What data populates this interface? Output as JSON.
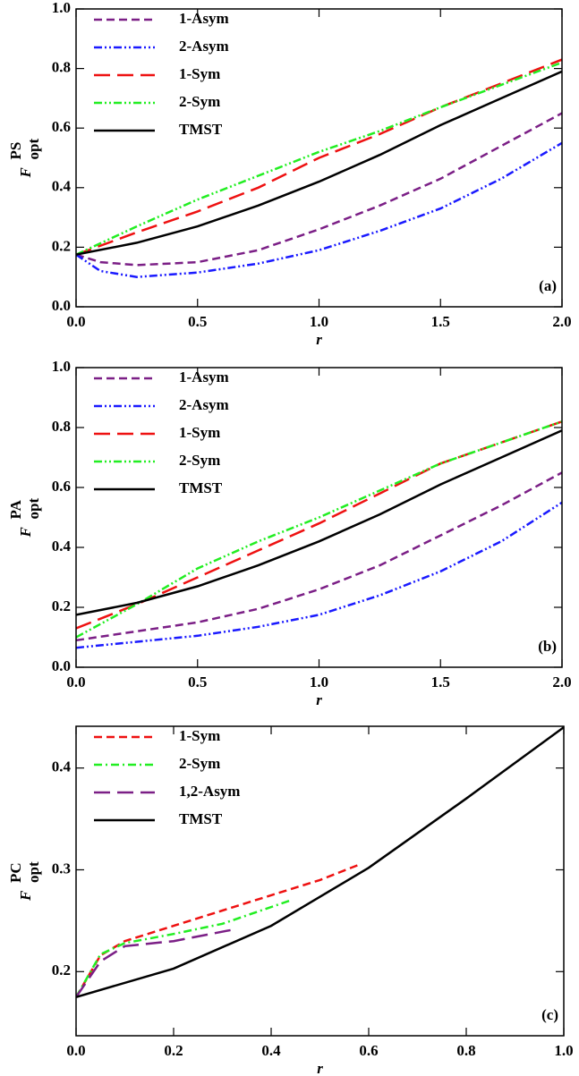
{
  "chart_data": [
    {
      "type": "line",
      "panel_label": "(a)",
      "xlabel": "r",
      "ylabel": "F",
      "ylabel_sub": "opt",
      "ylabel_sup": "PS",
      "xlim": [
        0,
        2
      ],
      "ylim": [
        0,
        1
      ],
      "xticks": [
        {
          "value": 0,
          "label": "0.0"
        },
        0.5,
        {
          "value": 1,
          "label": "1.0"
        },
        1.5,
        {
          "value": 2,
          "label": "2.0"
        }
      ],
      "yticks": [
        {
          "value": 0,
          "label": "0.0"
        },
        0.2,
        0.4,
        0.6,
        0.8,
        {
          "value": 1,
          "label": "1.0"
        }
      ],
      "legend": "upper left",
      "series": [
        {
          "name": "1-Asym",
          "color": "#7b1f86",
          "dash": "dash",
          "x": [
            0,
            0.1,
            0.25,
            0.5,
            0.75,
            1.0,
            1.25,
            1.5,
            1.75,
            2.0
          ],
          "values": [
            0.175,
            0.15,
            0.14,
            0.15,
            0.19,
            0.26,
            0.34,
            0.43,
            0.54,
            0.65
          ]
        },
        {
          "name": "2-Asym",
          "color": "#1a1aff",
          "dash": "dashdotdot",
          "x": [
            0,
            0.1,
            0.25,
            0.5,
            0.75,
            1.0,
            1.25,
            1.5,
            1.75,
            2.0
          ],
          "values": [
            0.175,
            0.12,
            0.1,
            0.115,
            0.145,
            0.19,
            0.255,
            0.33,
            0.43,
            0.55
          ]
        },
        {
          "name": "1-Sym",
          "color": "#ee1111",
          "dash": "longdash",
          "x": [
            0,
            0.25,
            0.5,
            0.75,
            1.0,
            1.25,
            1.5,
            1.75,
            2.0
          ],
          "values": [
            0.175,
            0.25,
            0.32,
            0.4,
            0.5,
            0.58,
            0.67,
            0.75,
            0.83
          ]
        },
        {
          "name": "2-Sym",
          "color": "#22ee22",
          "dash": "dashdotdot",
          "x": [
            0,
            0.25,
            0.5,
            0.75,
            1.0,
            1.25,
            1.5,
            1.75,
            2.0
          ],
          "values": [
            0.175,
            0.27,
            0.36,
            0.44,
            0.52,
            0.59,
            0.67,
            0.745,
            0.82
          ]
        },
        {
          "name": "TMST",
          "color": "#000000",
          "dash": "solid",
          "x": [
            0,
            0.25,
            0.5,
            0.75,
            1.0,
            1.25,
            1.5,
            1.75,
            2.0
          ],
          "values": [
            0.175,
            0.215,
            0.27,
            0.34,
            0.42,
            0.51,
            0.61,
            0.7,
            0.79
          ]
        }
      ]
    },
    {
      "type": "line",
      "panel_label": "(b)",
      "xlabel": "r",
      "ylabel": "F",
      "ylabel_sub": "opt",
      "ylabel_sup": "PA",
      "xlim": [
        0,
        2
      ],
      "ylim": [
        0,
        1
      ],
      "xticks": [
        {
          "value": 0,
          "label": "0.0"
        },
        0.5,
        {
          "value": 1,
          "label": "1.0"
        },
        1.5,
        {
          "value": 2,
          "label": "2.0"
        }
      ],
      "yticks": [
        {
          "value": 0,
          "label": "0.0"
        },
        0.2,
        0.4,
        0.6,
        0.8,
        {
          "value": 1,
          "label": "1.0"
        }
      ],
      "legend": "upper left",
      "series": [
        {
          "name": "1-Asym",
          "color": "#7b1f86",
          "dash": "dash",
          "x": [
            0,
            0.25,
            0.5,
            0.75,
            1.0,
            1.25,
            1.5,
            1.75,
            2.0
          ],
          "values": [
            0.09,
            0.12,
            0.15,
            0.195,
            0.26,
            0.34,
            0.44,
            0.54,
            0.65
          ]
        },
        {
          "name": "2-Asym",
          "color": "#1a1aff",
          "dash": "dashdotdot",
          "x": [
            0,
            0.25,
            0.5,
            0.75,
            1.0,
            1.25,
            1.5,
            1.75,
            2.0
          ],
          "values": [
            0.065,
            0.085,
            0.105,
            0.135,
            0.175,
            0.24,
            0.32,
            0.42,
            0.55
          ]
        },
        {
          "name": "1-Sym",
          "color": "#ee1111",
          "dash": "longdash",
          "x": [
            0,
            0.25,
            0.5,
            0.75,
            1.0,
            1.25,
            1.5,
            1.75,
            2.0
          ],
          "values": [
            0.13,
            0.21,
            0.3,
            0.39,
            0.48,
            0.58,
            0.68,
            0.75,
            0.82
          ]
        },
        {
          "name": "2-Sym",
          "color": "#22ee22",
          "dash": "dashdotdot",
          "x": [
            0,
            0.25,
            0.5,
            0.75,
            1.0,
            1.25,
            1.5,
            1.75,
            2.0
          ],
          "values": [
            0.1,
            0.21,
            0.33,
            0.42,
            0.5,
            0.59,
            0.68,
            0.75,
            0.82
          ]
        },
        {
          "name": "TMST",
          "color": "#000000",
          "dash": "solid",
          "x": [
            0,
            0.25,
            0.5,
            0.75,
            1.0,
            1.25,
            1.5,
            1.75,
            2.0
          ],
          "values": [
            0.175,
            0.215,
            0.27,
            0.34,
            0.42,
            0.51,
            0.61,
            0.7,
            0.79
          ]
        }
      ]
    },
    {
      "type": "line",
      "panel_label": "(c)",
      "xlabel": "r",
      "ylabel": "F",
      "ylabel_sub": "opt",
      "ylabel_sup": "PC",
      "xlim": [
        0,
        1
      ],
      "ylim": [
        0.137,
        0.441
      ],
      "xticks": [
        {
          "value": 0,
          "label": "0.0"
        },
        0.2,
        0.4,
        0.6,
        0.8,
        {
          "value": 1,
          "label": "1.0"
        }
      ],
      "yticks": [
        0.2,
        0.3,
        0.4
      ],
      "legend": "upper left",
      "series": [
        {
          "name": "1-Sym",
          "color": "#ee1111",
          "dash": "dash",
          "x": [
            0,
            0.05,
            0.1,
            0.2,
            0.3,
            0.4,
            0.5,
            0.58
          ],
          "values": [
            0.175,
            0.216,
            0.23,
            0.245,
            0.26,
            0.275,
            0.29,
            0.305
          ]
        },
        {
          "name": "2-Sym",
          "color": "#22ee22",
          "dash": "dashdot",
          "x": [
            0,
            0.05,
            0.1,
            0.2,
            0.3,
            0.44
          ],
          "values": [
            0.175,
            0.217,
            0.228,
            0.237,
            0.247,
            0.27
          ]
        },
        {
          "name": "1,2-Asym",
          "color": "#7b1f86",
          "dash": "longdash",
          "x": [
            0,
            0.05,
            0.1,
            0.2,
            0.33
          ],
          "values": [
            0.175,
            0.21,
            0.225,
            0.23,
            0.242
          ]
        },
        {
          "name": "TMST",
          "color": "#000000",
          "dash": "solid",
          "x": [
            0,
            0.2,
            0.4,
            0.6,
            0.8,
            1.0
          ],
          "values": [
            0.175,
            0.203,
            0.245,
            0.302,
            0.37,
            0.44
          ]
        }
      ]
    }
  ]
}
